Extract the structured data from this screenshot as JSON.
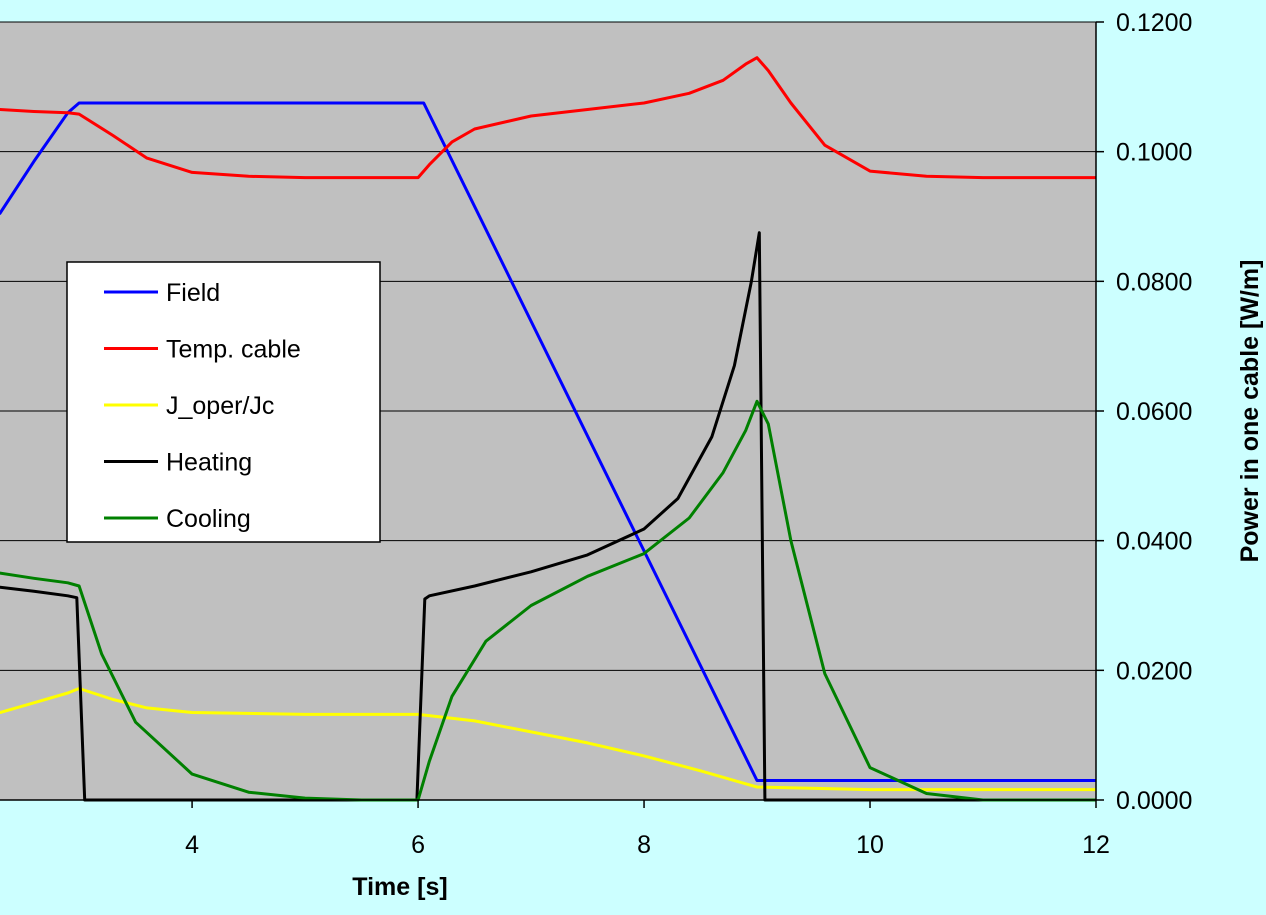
{
  "chart_data": {
    "type": "line",
    "xlabel": "Time [s]",
    "y2label": "Power in one cable [W/m]",
    "xlim": [
      2.3,
      12
    ],
    "xticks": [
      4,
      6,
      8,
      10,
      12
    ],
    "y2lim": [
      0,
      0.12
    ],
    "y2ticks": [
      "0.0000",
      "0.0200",
      "0.0400",
      "0.0600",
      "0.0800",
      "0.1000",
      "0.1200"
    ],
    "grid": "horizontal",
    "legend_position": "center-left",
    "series": [
      {
        "name": "Field",
        "color": "#0000ff",
        "x": [
          2.3,
          2.6,
          2.9,
          3.0,
          5.98,
          6.0,
          6.05,
          9.0,
          12.0
        ],
        "y": [
          0.0905,
          0.0985,
          0.106,
          0.1075,
          0.1075,
          0.1075,
          0.1075,
          0.003,
          0.003
        ]
      },
      {
        "name": "Temp. cable",
        "color": "#ff0000",
        "x": [
          2.3,
          2.6,
          2.9,
          3.0,
          3.3,
          3.6,
          4.0,
          4.5,
          5.0,
          5.5,
          5.95,
          6.0,
          6.1,
          6.3,
          6.5,
          7.0,
          7.5,
          8.0,
          8.4,
          8.7,
          8.9,
          9.0,
          9.1,
          9.3,
          9.6,
          10.0,
          10.5,
          11.0,
          12.0
        ],
        "y": [
          0.1065,
          0.1062,
          0.106,
          0.1058,
          0.1025,
          0.099,
          0.0968,
          0.0962,
          0.096,
          0.096,
          0.096,
          0.096,
          0.098,
          0.1015,
          0.1035,
          0.1055,
          0.1065,
          0.1075,
          0.109,
          0.111,
          0.1135,
          0.1145,
          0.1125,
          0.1075,
          0.101,
          0.097,
          0.0962,
          0.096,
          0.096
        ]
      },
      {
        "name": "J_oper/Jc",
        "color": "#ffff00",
        "x": [
          2.3,
          2.6,
          2.9,
          3.0,
          3.3,
          3.6,
          4.0,
          5.0,
          6.0,
          6.5,
          7.0,
          7.5,
          8.0,
          8.5,
          8.9,
          9.0,
          10.0,
          12.0
        ],
        "y": [
          0.0135,
          0.015,
          0.0165,
          0.0172,
          0.0155,
          0.0142,
          0.0135,
          0.0132,
          0.0132,
          0.0122,
          0.0105,
          0.0088,
          0.0068,
          0.0045,
          0.0025,
          0.002,
          0.0016,
          0.0016
        ]
      },
      {
        "name": "Heating",
        "color": "#000000",
        "x": [
          2.3,
          2.6,
          2.9,
          2.98,
          3.05,
          3.1,
          5.99,
          6.06,
          6.1,
          6.5,
          7.0,
          7.5,
          8.0,
          8.3,
          8.6,
          8.8,
          8.95,
          9.02,
          9.07,
          9.1,
          12.0
        ],
        "y": [
          0.0328,
          0.0322,
          0.0315,
          0.0312,
          0,
          0,
          0,
          0.031,
          0.0315,
          0.033,
          0.0352,
          0.0378,
          0.0418,
          0.0465,
          0.056,
          0.067,
          0.08,
          0.0875,
          0,
          0,
          0
        ]
      },
      {
        "name": "Cooling",
        "color": "#008000",
        "x": [
          2.3,
          2.6,
          2.9,
          3.0,
          3.2,
          3.5,
          4.0,
          4.5,
          5.0,
          5.5,
          6.0,
          6.1,
          6.3,
          6.6,
          7.0,
          7.5,
          8.0,
          8.4,
          8.7,
          8.9,
          9.0,
          9.1,
          9.3,
          9.6,
          10.0,
          10.5,
          11.0,
          12.0
        ],
        "y": [
          0.035,
          0.0342,
          0.0335,
          0.033,
          0.0225,
          0.012,
          0.004,
          0.0012,
          0.0003,
          0,
          0,
          0.006,
          0.016,
          0.0245,
          0.03,
          0.0345,
          0.038,
          0.0435,
          0.0505,
          0.057,
          0.0615,
          0.058,
          0.04,
          0.0195,
          0.005,
          0.001,
          0,
          0
        ]
      }
    ]
  }
}
